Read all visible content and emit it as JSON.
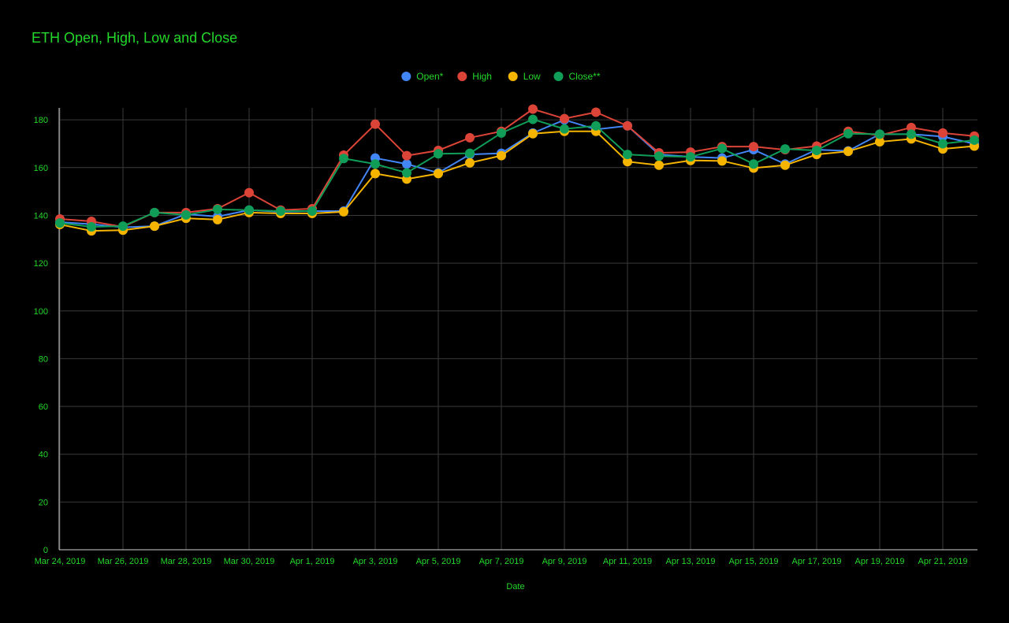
{
  "chart_data": {
    "type": "line",
    "title": "ETH Open, High, Low and Close",
    "xlabel": "Date",
    "ylabel": "",
    "ylim": [
      0,
      185
    ],
    "yticks": [
      0,
      20,
      40,
      60,
      80,
      100,
      120,
      140,
      160,
      180
    ],
    "x": [
      "Mar 24, 2019",
      "Mar 25, 2019",
      "Mar 26, 2019",
      "Mar 27, 2019",
      "Mar 28, 2019",
      "Mar 29, 2019",
      "Mar 30, 2019",
      "Mar 31, 2019",
      "Apr 1, 2019",
      "Apr 2, 2019",
      "Apr 3, 2019",
      "Apr 4, 2019",
      "Apr 5, 2019",
      "Apr 6, 2019",
      "Apr 7, 2019",
      "Apr 8, 2019",
      "Apr 9, 2019",
      "Apr 10, 2019",
      "Apr 11, 2019",
      "Apr 12, 2019",
      "Apr 13, 2019",
      "Apr 14, 2019",
      "Apr 15, 2019",
      "Apr 16, 2019",
      "Apr 17, 2019",
      "Apr 18, 2019",
      "Apr 19, 2019",
      "Apr 20, 2019",
      "Apr 21, 2019",
      "Apr 22, 2019"
    ],
    "x_tick_labels": [
      "Mar 24, 2019",
      "Mar 26, 2019",
      "Mar 28, 2019",
      "Mar 30, 2019",
      "Apr 1, 2019",
      "Apr 3, 2019",
      "Apr 5, 2019",
      "Apr 7, 2019",
      "Apr 9, 2019",
      "Apr 11, 2019",
      "Apr 13, 2019",
      "Apr 15, 2019",
      "Apr 17, 2019",
      "Apr 19, 2019",
      "Apr 21, 2019"
    ],
    "grid": true,
    "legend_position": "top",
    "series": [
      {
        "name": "Open*",
        "color": "#4285f4",
        "values": [
          137.2,
          136.3,
          135.0,
          135.5,
          140.5,
          139.5,
          142.2,
          141.5,
          141.8,
          141.8,
          164.0,
          161.5,
          157.8,
          165.5,
          166.0,
          174.5,
          180.0,
          176.0,
          177.5,
          165.5,
          164.5,
          164.0,
          167.5,
          161.5,
          167.5,
          167.0,
          174.0,
          174.0,
          173.0,
          170.0
        ]
      },
      {
        "name": "High",
        "color": "#db4437",
        "values": [
          138.5,
          137.5,
          135.2,
          141.2,
          141.2,
          142.8,
          149.5,
          142.2,
          142.8,
          165.2,
          178.2,
          165.0,
          167.2,
          172.5,
          175.2,
          184.5,
          180.5,
          183.2,
          177.5,
          166.2,
          166.5,
          168.8,
          168.8,
          167.5,
          169.0,
          175.2,
          173.5,
          176.8,
          174.5,
          173.2
        ]
      },
      {
        "name": "Low",
        "color": "#f4b400",
        "values": [
          136.2,
          133.5,
          133.8,
          135.5,
          138.8,
          138.2,
          141.2,
          140.8,
          140.8,
          141.5,
          157.5,
          155.2,
          157.5,
          162.0,
          165.0,
          174.2,
          175.2,
          175.2,
          162.5,
          161.0,
          163.0,
          162.8,
          159.8,
          161.0,
          165.5,
          166.8,
          170.8,
          172.0,
          167.8,
          169.0
        ]
      },
      {
        "name": "Close**",
        "color": "#0f9d58",
        "values": [
          136.8,
          135.2,
          135.5,
          141.2,
          140.2,
          142.5,
          142.2,
          141.8,
          141.8,
          163.8,
          161.5,
          157.8,
          165.8,
          166.0,
          174.5,
          180.2,
          176.2,
          177.5,
          165.5,
          164.8,
          164.5,
          168.0,
          161.5,
          167.8,
          167.2,
          174.2,
          174.0,
          174.0,
          170.0,
          171.5
        ]
      }
    ]
  },
  "colors": {
    "background": "#000000",
    "text": "#23d82a",
    "grid": "#3a3a3a",
    "axis": "#d0d0d0"
  }
}
